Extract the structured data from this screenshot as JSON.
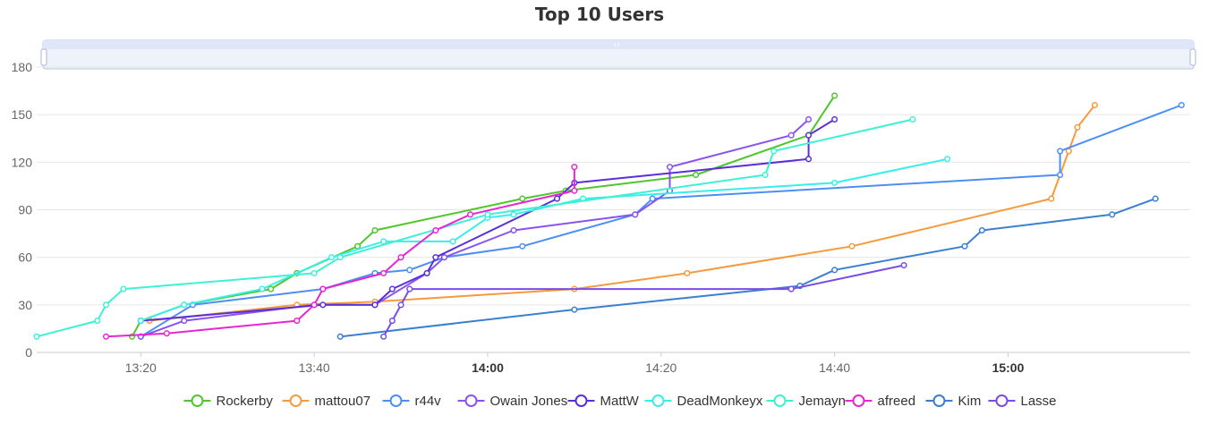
{
  "chart_data": {
    "type": "line",
    "title": "Top 10 Users",
    "xlabel": "",
    "ylabel": "",
    "ylim": [
      0,
      180
    ],
    "xlim": [
      "13:08",
      "15:21"
    ],
    "y_ticks": [
      "0",
      "30",
      "60",
      "90",
      "120",
      "150",
      "180"
    ],
    "x_ticks": [
      {
        "label": "13:20",
        "time": "13:20",
        "bold": false
      },
      {
        "label": "13:40",
        "time": "13:40",
        "bold": false
      },
      {
        "label": "14:00",
        "time": "14:00",
        "bold": true
      },
      {
        "label": "14:20",
        "time": "14:20",
        "bold": false
      },
      {
        "label": "14:40",
        "time": "14:40",
        "bold": false
      },
      {
        "label": "15:00",
        "time": "15:00",
        "bold": true
      }
    ],
    "grid": true,
    "legend_position": "bottom",
    "has_zoom_slider": true,
    "series": [
      {
        "name": "Rockerby",
        "color": "#4ec62c",
        "points": [
          [
            "13:19",
            10
          ],
          [
            "13:20",
            20
          ],
          [
            "13:25",
            30
          ],
          [
            "13:35",
            40
          ],
          [
            "13:38",
            50
          ],
          [
            "13:45",
            67
          ],
          [
            "13:47",
            77
          ],
          [
            "14:04",
            97
          ],
          [
            "14:09",
            102
          ],
          [
            "14:24",
            112
          ],
          [
            "14:37",
            137
          ],
          [
            "14:40",
            162
          ]
        ]
      },
      {
        "name": "mattou07",
        "color": "#f59a3d",
        "points": [
          [
            "13:21",
            20
          ],
          [
            "13:38",
            30
          ],
          [
            "13:47",
            32
          ],
          [
            "14:10",
            40
          ],
          [
            "14:23",
            50
          ],
          [
            "14:42",
            67
          ],
          [
            "15:05",
            97
          ],
          [
            "15:07",
            127
          ],
          [
            "15:08",
            142
          ],
          [
            "15:10",
            156
          ]
        ]
      },
      {
        "name": "r44v",
        "color": "#4b8ff5",
        "points": [
          [
            "13:20",
            10
          ],
          [
            "13:26",
            30
          ],
          [
            "13:41",
            40
          ],
          [
            "13:47",
            50
          ],
          [
            "13:51",
            52
          ],
          [
            "13:55",
            60
          ],
          [
            "14:04",
            67
          ],
          [
            "14:17",
            87
          ],
          [
            "14:19",
            97
          ],
          [
            "15:06",
            112
          ],
          [
            "15:06",
            127
          ],
          [
            "15:20",
            156
          ]
        ]
      },
      {
        "name": "Owain Jones",
        "color": "#8a53ee",
        "points": [
          [
            "13:20",
            10
          ],
          [
            "13:25",
            20
          ],
          [
            "13:40",
            30
          ],
          [
            "13:47",
            30
          ],
          [
            "13:53",
            50
          ],
          [
            "13:55",
            60
          ],
          [
            "14:03",
            77
          ],
          [
            "14:17",
            87
          ],
          [
            "14:21",
            102
          ],
          [
            "14:21",
            117
          ],
          [
            "14:35",
            137
          ],
          [
            "14:37",
            147
          ]
        ]
      },
      {
        "name": "MattW",
        "color": "#5a2fd9",
        "points": [
          [
            "13:20",
            20
          ],
          [
            "13:41",
            30
          ],
          [
            "13:47",
            30
          ],
          [
            "13:49",
            40
          ],
          [
            "13:53",
            50
          ],
          [
            "13:54",
            60
          ],
          [
            "14:08",
            97
          ],
          [
            "14:10",
            107
          ],
          [
            "14:37",
            122
          ],
          [
            "14:37",
            137
          ],
          [
            "14:40",
            147
          ]
        ]
      },
      {
        "name": "DeadMonkeyx",
        "color": "#38eee8",
        "points": [
          [
            "13:20",
            20
          ],
          [
            "13:25",
            30
          ],
          [
            "13:34",
            40
          ],
          [
            "13:42",
            60
          ],
          [
            "13:48",
            70
          ],
          [
            "13:56",
            70
          ],
          [
            "14:00",
            85
          ],
          [
            "14:03",
            87
          ],
          [
            "14:11",
            97
          ],
          [
            "14:40",
            107
          ],
          [
            "14:53",
            122
          ]
        ]
      },
      {
        "name": "Jemayn",
        "color": "#3ef0d4",
        "points": [
          [
            "13:08",
            10
          ],
          [
            "13:15",
            20
          ],
          [
            "13:16",
            30
          ],
          [
            "13:18",
            40
          ],
          [
            "13:40",
            50
          ],
          [
            "13:43",
            60
          ],
          [
            "14:00",
            87
          ],
          [
            "14:32",
            112
          ],
          [
            "14:33",
            127
          ],
          [
            "14:49",
            147
          ]
        ]
      },
      {
        "name": "afreed",
        "color": "#e626d3",
        "points": [
          [
            "13:16",
            10
          ],
          [
            "13:23",
            12
          ],
          [
            "13:38",
            20
          ],
          [
            "13:40",
            30
          ],
          [
            "13:41",
            40
          ],
          [
            "13:48",
            50
          ],
          [
            "13:50",
            60
          ],
          [
            "13:54",
            77
          ],
          [
            "13:58",
            87
          ],
          [
            "14:10",
            102
          ],
          [
            "14:10",
            117
          ]
        ]
      },
      {
        "name": "Kim",
        "color": "#3a7fd0",
        "points": [
          [
            "13:43",
            10
          ],
          [
            "14:10",
            27
          ],
          [
            "14:36",
            42
          ],
          [
            "14:40",
            52
          ],
          [
            "14:55",
            67
          ],
          [
            "14:57",
            77
          ],
          [
            "15:12",
            87
          ],
          [
            "15:17",
            97
          ]
        ]
      },
      {
        "name": "Lasse",
        "color": "#7a4be6",
        "points": [
          [
            "13:48",
            10
          ],
          [
            "13:49",
            20
          ],
          [
            "13:50",
            30
          ],
          [
            "13:51",
            40
          ],
          [
            "14:35",
            40
          ],
          [
            "14:48",
            55
          ]
        ]
      }
    ]
  }
}
